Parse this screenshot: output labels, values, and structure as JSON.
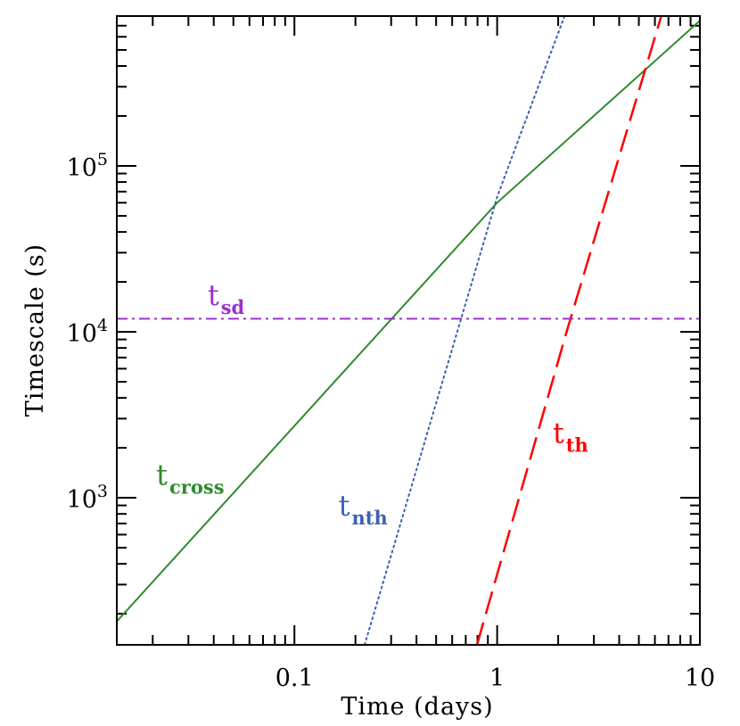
{
  "chart_data": {
    "type": "line",
    "xscale": "log",
    "yscale": "log",
    "xlim": [
      0.0133,
      10
    ],
    "ylim": [
      130,
      800000
    ],
    "xlabel": "Time (days)",
    "ylabel": "Timescale (s)",
    "x_ticks": [
      {
        "value": 0.1,
        "label": "0.1"
      },
      {
        "value": 1,
        "label": "1"
      },
      {
        "value": 10,
        "label": "10"
      }
    ],
    "y_ticks": [
      {
        "value": 1000,
        "base": "10",
        "exp": "3"
      },
      {
        "value": 10000,
        "base": "10",
        "exp": "4"
      },
      {
        "value": 100000,
        "base": "10",
        "exp": "5"
      }
    ],
    "grid": false,
    "legend": "none",
    "series": [
      {
        "name_main": "t",
        "name_sub": "cross",
        "color": "#2e8b2e",
        "dash": "solid",
        "x": [
          0.0133,
          1.0,
          10
        ],
        "y": [
          180,
          60000,
          750000
        ]
      },
      {
        "name_main": "t",
        "name_sub": "nth",
        "color": "#3a62b0",
        "dash": "dotted",
        "x": [
          0.222,
          1.0,
          2.15
        ],
        "y": [
          130,
          65000,
          800000
        ]
      },
      {
        "name_main": "t",
        "name_sub": "th",
        "color": "#ff0000",
        "dash": "dashed",
        "x": [
          0.795,
          2.2,
          6.45
        ],
        "y": [
          130,
          10000,
          800000
        ]
      },
      {
        "name_main": "t",
        "name_sub": "sd",
        "color": "#9b30d0",
        "dash": "dashdot",
        "x": [
          0.0133,
          10
        ],
        "y": [
          12000,
          12000
        ]
      }
    ],
    "annotations": [
      {
        "series": 0,
        "x": 0.0208,
        "y": 1200
      },
      {
        "series": 1,
        "x": 0.165,
        "y": 780
      },
      {
        "series": 2,
        "x": 1.88,
        "y": 2150
      },
      {
        "series": 3,
        "x": 0.0373,
        "y": 14500
      }
    ]
  }
}
